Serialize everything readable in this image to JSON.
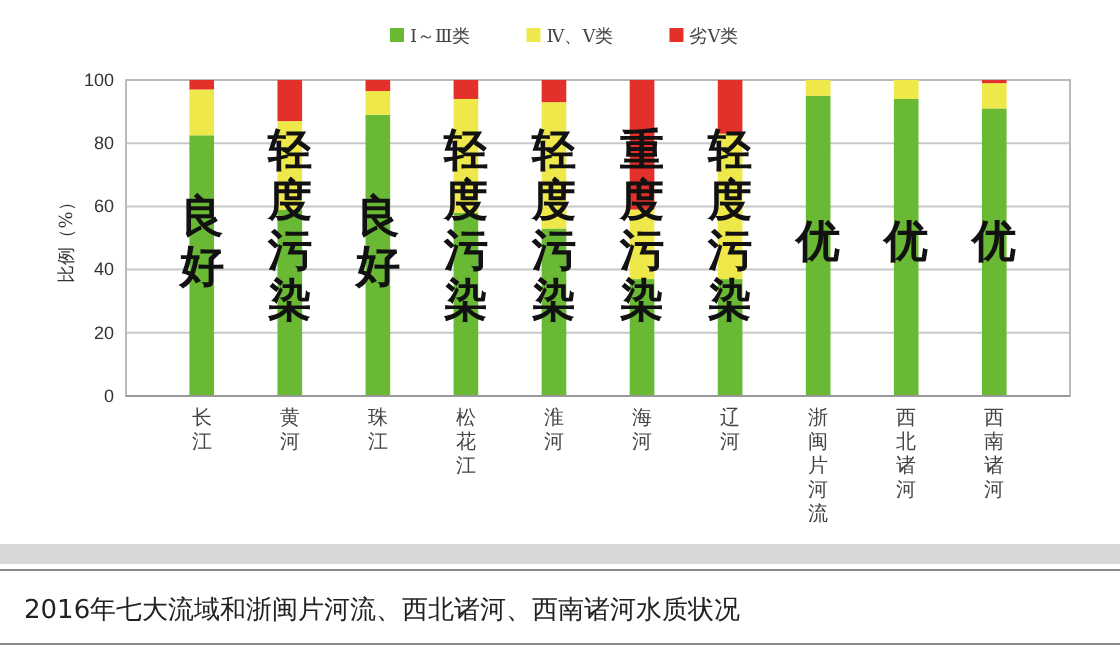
{
  "chart_data": {
    "type": "bar",
    "stacked": true,
    "title": "2016年七大流域和浙闽片河流、西北诸河、西南诸河水质状况",
    "ylabel": "比例（%）",
    "categories": [
      "长江",
      "黄河",
      "珠江",
      "松花江",
      "淮河",
      "海河",
      "辽河",
      "浙闽片河流",
      "西北诸河",
      "西南诸河"
    ],
    "series": [
      {
        "name": "Ⅰ～Ⅲ类",
        "color": "#6ab934",
        "values": [
          82.5,
          59,
          89,
          58,
          53,
          37,
          37,
          95,
          94,
          91
        ]
      },
      {
        "name": "Ⅳ、Ⅴ类",
        "color": "#eee84a",
        "values": [
          14.5,
          28,
          7.5,
          36,
          40,
          22,
          46,
          5,
          6,
          8
        ]
      },
      {
        "name": "劣Ⅴ类",
        "color": "#e3302b",
        "values": [
          3,
          13,
          3.5,
          6,
          7,
          41,
          17,
          0,
          0,
          1
        ]
      }
    ],
    "ylim": [
      0,
      100
    ],
    "yticks": [
      0,
      20,
      40,
      60,
      80,
      100
    ],
    "grid": "y",
    "legend": "top",
    "annotations": [
      "良好",
      "轻度污染",
      "良好",
      "轻度污染",
      "轻度污染",
      "重度污染",
      "轻度污染",
      "优",
      "优",
      "优"
    ]
  }
}
